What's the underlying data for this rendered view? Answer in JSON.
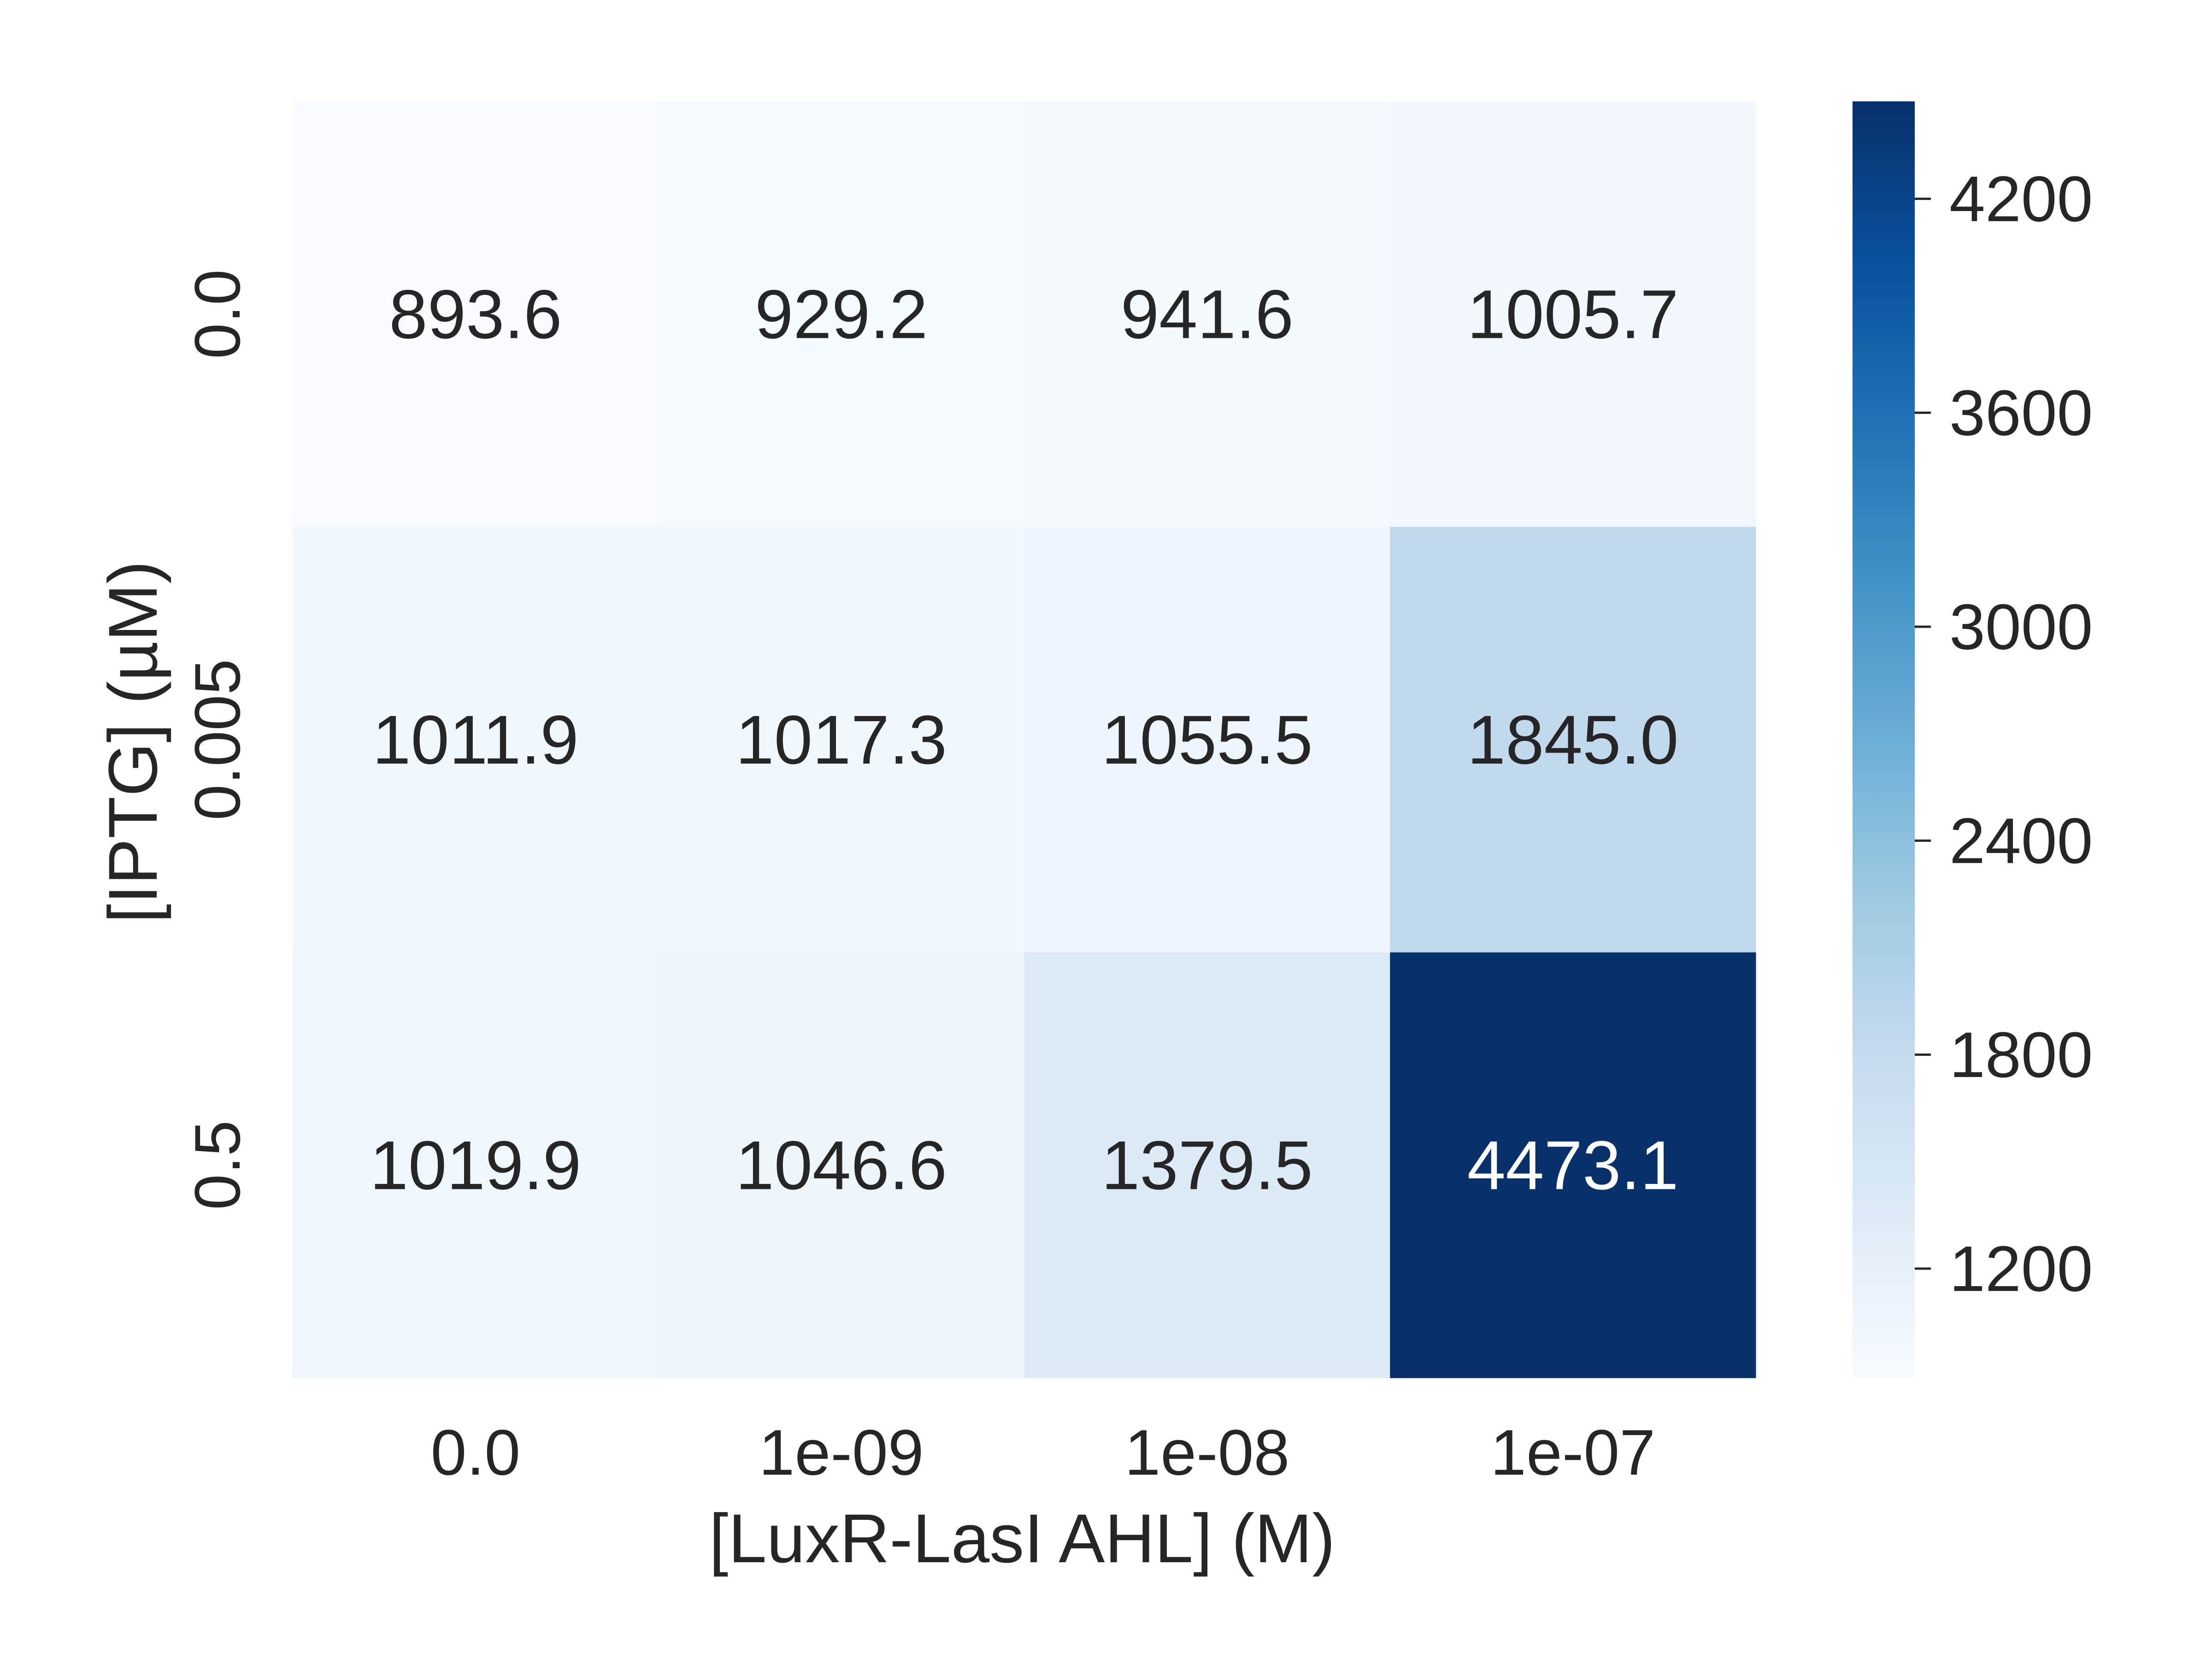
{
  "chart_data": {
    "type": "heatmap",
    "xlabel": "[LuxR-LasI AHL] (M)",
    "ylabel": "[IPTG] (µM)",
    "x_categories": [
      "0.0",
      "1e-09",
      "1e-08",
      "1e-07"
    ],
    "y_categories": [
      "0.0",
      "0.005",
      "0.5"
    ],
    "values": [
      [
        893.6,
        929.2,
        941.6,
        1005.7
      ],
      [
        1011.9,
        1017.3,
        1055.5,
        1845.0
      ],
      [
        1019.9,
        1046.6,
        1379.5,
        4473.1
      ]
    ],
    "value_labels": [
      [
        "893.6",
        "929.2",
        "941.6",
        "1005.7"
      ],
      [
        "1011.9",
        "1017.3",
        "1055.5",
        "1845.0"
      ],
      [
        "1019.9",
        "1046.6",
        "1379.5",
        "4473.1"
      ]
    ],
    "colormap": "Blues",
    "color_range": [
      893.6,
      4473.1
    ],
    "colorbar_ticks": [
      "1200",
      "1800",
      "2400",
      "3000",
      "3600",
      "4200"
    ],
    "colorbar_tick_values": [
      1200,
      1800,
      2400,
      3000,
      3600,
      4200
    ],
    "grid": false,
    "legend": "colorbar-right"
  }
}
